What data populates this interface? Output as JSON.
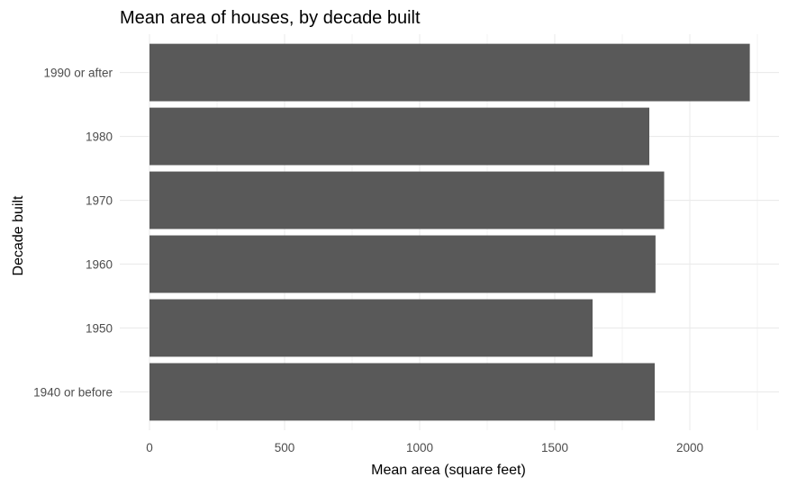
{
  "chart_data": {
    "type": "bar",
    "orientation": "horizontal",
    "title": "Mean area of houses, by decade built",
    "xlabel": "Mean area (square feet)",
    "ylabel": "Decade built",
    "categories": [
      "1940 or before",
      "1950",
      "1960",
      "1970",
      "1980",
      "1990 or after"
    ],
    "values": [
      1870,
      1640,
      1873,
      1905,
      1850,
      2222
    ],
    "xlim": [
      -110,
      2330
    ],
    "x_ticks": [
      "0",
      "500",
      "1000",
      "1500",
      "2000"
    ],
    "x_tick_values": [
      0,
      500,
      1000,
      1500,
      2000
    ],
    "grid": true,
    "legend": "none",
    "colors": {
      "bar": "#595959",
      "grid_major": "#ebebeb",
      "grid_minor": "#f5f5f5",
      "text": "#000000",
      "tick_text": "#4d4d4d"
    }
  }
}
